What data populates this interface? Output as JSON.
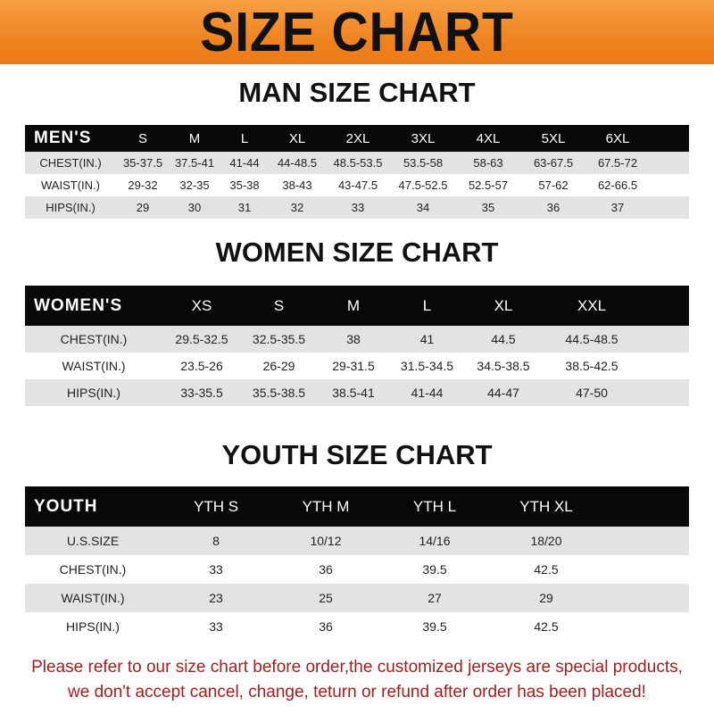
{
  "title": "SIZE CHART",
  "men": {
    "title": "MAN SIZE CHART",
    "header": [
      "MEN'S",
      "S",
      "M",
      "L",
      "XL",
      "2XL",
      "3XL",
      "4XL",
      "5XL",
      "6XL"
    ],
    "rows": [
      [
        "CHEST(IN.)",
        "35-37.5",
        "37.5-41",
        "41-44",
        "44-48.5",
        "48.5-53.5",
        "53.5-58",
        "58-63",
        "63-67.5",
        "67.5-72"
      ],
      [
        "WAIST(IN.)",
        "29-32",
        "32-35",
        "35-38",
        "38-43",
        "43-47.5",
        "47.5-52.5",
        "52.5-57",
        "57-62",
        "62-66.5"
      ],
      [
        "HIPS(IN.)",
        "29",
        "30",
        "31",
        "32",
        "33",
        "34",
        "35",
        "36",
        "37"
      ]
    ]
  },
  "women": {
    "title": "WOMEN SIZE CHART",
    "header": [
      "WOMEN'S",
      "XS",
      "S",
      "M",
      "L",
      "XL",
      "XXL"
    ],
    "rows": [
      [
        "CHEST(IN.)",
        "29.5-32.5",
        "32.5-35.5",
        "38",
        "41",
        "44.5",
        "44.5-48.5"
      ],
      [
        "WAIST(IN.)",
        "23.5-26",
        "26-29",
        "29-31.5",
        "31.5-34.5",
        "34.5-38.5",
        "38.5-42.5"
      ],
      [
        "HIPS(IN.)",
        "33-35.5",
        "35.5-38.5",
        "38.5-41",
        "41-44",
        "44-47",
        "47-50"
      ]
    ]
  },
  "youth": {
    "title": "YOUTH SIZE CHART",
    "header": [
      "YOUTH",
      "YTH S",
      "YTH M",
      "YTH L",
      "YTH XL"
    ],
    "rows": [
      [
        "U.S.SIZE",
        "8",
        "10/12",
        "14/16",
        "18/20"
      ],
      [
        "CHEST(IN.)",
        "33",
        "36",
        "39.5",
        "42.5"
      ],
      [
        "WAIST(IN.)",
        "23",
        "25",
        "27",
        "29"
      ],
      [
        "HIPS(IN.)",
        "33",
        "36",
        "39.5",
        "42.5"
      ]
    ]
  },
  "note": [
    "Please refer to our size chart before order,the customized jerseys are special products,",
    "we don't accept cancel, change, teturn or refund after order has been placed!"
  ],
  "colors": {
    "banner": "#ef8420",
    "header_row": "#0a0707",
    "note": "#a31e1e"
  }
}
